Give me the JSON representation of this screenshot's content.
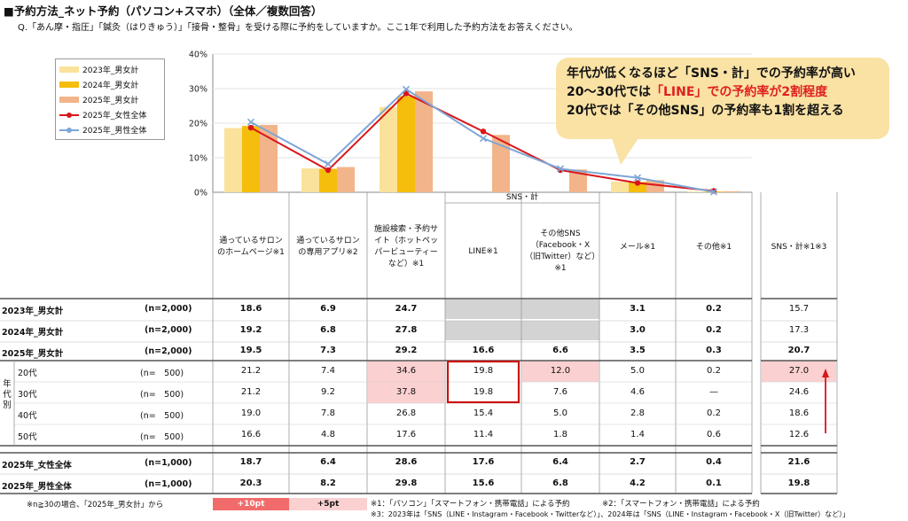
{
  "title": "■予約方法_ネット予約（パソコン+スマホ）（全体／複数回答）",
  "question": "Q.「あん摩・指圧」「鍼灸（はりきゅう）」「接骨・整骨」を受ける際に予約をしていますか。ここ1年で利用した予約方法をお答えください。",
  "callout": {
    "line1": "年代が低くなるほど「SNS・計」での予約率が高い",
    "line2a": "20～30代では",
    "line2b": "「LINE」での予約率が2割程度",
    "line3": "20代では「その他SNS」の予約率も1割を超える"
  },
  "chart_data": {
    "type": "bar",
    "ylim": [
      0,
      40
    ],
    "yticks": [
      "0%",
      "10%",
      "20%",
      "30%",
      "40%"
    ],
    "categories": [
      "通っているサロンのホームページ※1",
      "通っているサロンの専用アプリ※2",
      "施設検索・予約サイト（ホットペッパービューティーなど）※1",
      "LINE※1",
      "その他SNS（Facebook・X（旧Twitter）など）※1",
      "メール※1",
      "その他※1"
    ],
    "series": [
      {
        "name": "2023年_男女計",
        "kind": "bar",
        "color": "#fbe29a",
        "values": [
          18.6,
          6.9,
          24.7,
          null,
          null,
          3.1,
          0.2
        ]
      },
      {
        "name": "2024年_男女計",
        "kind": "bar",
        "color": "#f5bd0c",
        "values": [
          19.2,
          6.8,
          27.8,
          null,
          null,
          3.0,
          0.2
        ]
      },
      {
        "name": "2025年_男女計",
        "kind": "bar",
        "color": "#f2b48a",
        "values": [
          19.5,
          7.3,
          29.2,
          16.6,
          6.6,
          3.5,
          0.3
        ]
      },
      {
        "name": "2025年_女性全体",
        "kind": "line",
        "color": "#d9161b",
        "values": [
          18.7,
          6.4,
          28.6,
          17.6,
          6.4,
          2.7,
          0.4
        ]
      },
      {
        "name": "2025年_男性全体",
        "kind": "line",
        "color": "#7ea6d6",
        "values": [
          20.3,
          8.2,
          29.8,
          15.6,
          6.8,
          4.2,
          0.1
        ]
      }
    ]
  },
  "table": {
    "sns_group_label": "SNS・計",
    "columns": [
      "通っているサロンのホームページ※1",
      "通っているサロンの専用アプリ※2",
      "施設検索・予約サイト（ホットペッパービューティーなど）※1",
      "LINE※1",
      "その他SNS（Facebook・X（旧Twitter）など）※1",
      "メール※1",
      "その他※1"
    ],
    "sns_total_header": "SNS・計※1※3",
    "age_group_label": "年代別",
    "rows": [
      {
        "label": "2023年_男女計",
        "n": "(n=2,000)",
        "bold": true,
        "values": [
          "18.6",
          "6.9",
          "24.7",
          "",
          "",
          "3.1",
          "0.2"
        ],
        "sns": "15.7"
      },
      {
        "label": "2024年_男女計",
        "n": "(n=2,000)",
        "bold": true,
        "values": [
          "19.2",
          "6.8",
          "27.8",
          "",
          "",
          "3.0",
          "0.2"
        ],
        "sns": "17.3"
      },
      {
        "label": "2025年_男女計",
        "n": "(n=2,000)",
        "bold": true,
        "values": [
          "19.5",
          "7.3",
          "29.2",
          "16.6",
          "6.6",
          "3.5",
          "0.3"
        ],
        "sns": "20.7"
      },
      {
        "label": "20代",
        "n": "(n=　500)",
        "bold": false,
        "values": [
          "21.2",
          "7.4",
          "34.6",
          "19.8",
          "12.0",
          "5.0",
          "0.2"
        ],
        "sns": "27.0"
      },
      {
        "label": "30代",
        "n": "(n=　500)",
        "bold": false,
        "values": [
          "21.2",
          "9.2",
          "37.8",
          "19.8",
          "7.6",
          "4.6",
          "—"
        ],
        "sns": "24.6"
      },
      {
        "label": "40代",
        "n": "(n=　500)",
        "bold": false,
        "values": [
          "19.0",
          "7.8",
          "26.8",
          "15.4",
          "5.0",
          "2.8",
          "0.2"
        ],
        "sns": "18.6"
      },
      {
        "label": "50代",
        "n": "(n=　500)",
        "bold": false,
        "values": [
          "16.6",
          "4.8",
          "17.6",
          "11.4",
          "1.8",
          "1.4",
          "0.6"
        ],
        "sns": "12.6"
      },
      {
        "label": "2025年_女性全体",
        "n": "(n=1,000)",
        "bold": true,
        "values": [
          "18.7",
          "6.4",
          "28.6",
          "17.6",
          "6.4",
          "2.7",
          "0.4"
        ],
        "sns": "21.6"
      },
      {
        "label": "2025年_男性全体",
        "n": "(n=1,000)",
        "bold": true,
        "values": [
          "20.3",
          "8.2",
          "29.8",
          "15.6",
          "6.8",
          "4.2",
          "0.1"
        ],
        "sns": "19.8"
      }
    ]
  },
  "notes": {
    "n30": "※n≧30の場合、「2025年_男女計」から",
    "plus10": "+10pt",
    "plus5": "+5pt",
    "note1": "※1：「パソコン」「スマートフォン・携帯電話」による予約",
    "note2": "※2：「スマートフォン・携帯電話」による予約",
    "note3": "※3：2023年は「SNS（LINE・Instagram・Facebook・Twitterなど）」、2024年は「SNS（LINE・Instagram・Facebook・X（旧Twitter）など）」"
  },
  "colors": {
    "highlight_strong": "#f26b6b",
    "highlight_light": "#fbd0d0",
    "grey_cell": "#d3d3d3",
    "red_box": "#cc1111",
    "arrow": "#d9161b"
  }
}
